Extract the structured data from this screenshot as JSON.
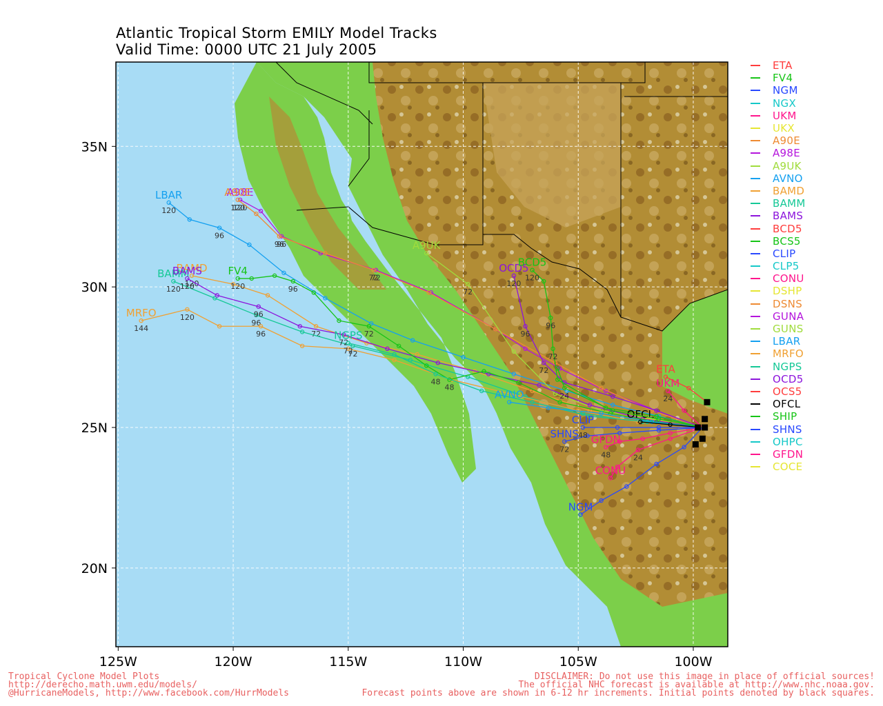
{
  "title": {
    "line1": "Atlantic Tropical Storm EMILY Model Tracks",
    "line2": "Valid Time: 0000 UTC 21 July 2005"
  },
  "axes": {
    "lon_ticks": [
      "125W",
      "120W",
      "115W",
      "110W",
      "105W",
      "100W"
    ],
    "lat_ticks": [
      "35N",
      "30N",
      "25N",
      "20N"
    ],
    "lon_range": [
      -125.1,
      -98.5
    ],
    "lat_range": [
      17.2,
      38.0
    ]
  },
  "colors": {
    "ocean": "#a8dcf5",
    "coast_green": "#7ccf4a",
    "highland": "#b08a30",
    "grid": "#ffffff"
  },
  "legend": [
    {
      "name": "ETA",
      "color": "#ff3c3c"
    },
    {
      "name": "FV4",
      "color": "#16c416"
    },
    {
      "name": "NGM",
      "color": "#2848ff"
    },
    {
      "name": "NGX",
      "color": "#14c8c8"
    },
    {
      "name": "UKM",
      "color": "#ff148c"
    },
    {
      "name": "UKX",
      "color": "#e6e632"
    },
    {
      "name": "A90E",
      "color": "#ee8a32"
    },
    {
      "name": "A98E",
      "color": "#b414dc"
    },
    {
      "name": "A9UK",
      "color": "#a0dc3c"
    },
    {
      "name": "AVNO",
      "color": "#14a0f0"
    },
    {
      "name": "BAMD",
      "color": "#f0a032"
    },
    {
      "name": "BAMM",
      "color": "#14c896"
    },
    {
      "name": "BAMS",
      "color": "#8c14dc"
    },
    {
      "name": "BCD5",
      "color": "#ff3c3c"
    },
    {
      "name": "BCS5",
      "color": "#16c416"
    },
    {
      "name": "CLIP",
      "color": "#2848ff"
    },
    {
      "name": "CLP5",
      "color": "#14c8c8"
    },
    {
      "name": "CONU",
      "color": "#ff148c"
    },
    {
      "name": "DSHP",
      "color": "#e6e632"
    },
    {
      "name": "DSNS",
      "color": "#ee8a32"
    },
    {
      "name": "GUNA",
      "color": "#b414dc"
    },
    {
      "name": "GUNS",
      "color": "#a0dc3c"
    },
    {
      "name": "LBAR",
      "color": "#14a0f0"
    },
    {
      "name": "MRFO",
      "color": "#f0a032"
    },
    {
      "name": "NGPS",
      "color": "#14c896"
    },
    {
      "name": "OCD5",
      "color": "#8c14dc"
    },
    {
      "name": "OCS5",
      "color": "#ff3c3c"
    },
    {
      "name": "OFCL",
      "color": "#000000"
    },
    {
      "name": "SHIP",
      "color": "#16c416"
    },
    {
      "name": "SHNS",
      "color": "#2848ff"
    },
    {
      "name": "OHPC",
      "color": "#14c8c8"
    },
    {
      "name": "GFDN",
      "color": "#ff148c"
    },
    {
      "name": "COCE",
      "color": "#e6e632"
    }
  ],
  "initial_position": {
    "lon": -99.6,
    "lat": 25.0
  },
  "tracks": [
    {
      "model": "LBAR",
      "color": "#14a0f0",
      "label_at": "end",
      "points": [
        [
          -99.6,
          25.0
        ],
        [
          -101.5,
          25.4
        ],
        [
          -103.5,
          25.8
        ],
        [
          -105.5,
          26.3
        ],
        [
          -107.8,
          26.9
        ],
        [
          -110.0,
          27.5
        ],
        [
          -112.2,
          28.1
        ],
        [
          -114.0,
          28.7
        ],
        [
          -116.0,
          29.6
        ],
        [
          -117.8,
          30.5
        ],
        [
          -119.3,
          31.5
        ],
        [
          -120.6,
          32.1
        ],
        [
          -121.9,
          32.4
        ],
        [
          -122.8,
          33.0
        ]
      ],
      "tau_labels": [
        {
          "i": 11,
          "t": "96"
        },
        {
          "i": 13,
          "t": "120"
        }
      ]
    },
    {
      "model": "A98E",
      "color": "#b414dc",
      "label_at": "end",
      "points": [
        [
          -99.6,
          25.0
        ],
        [
          -101.6,
          25.6
        ],
        [
          -103.8,
          26.3
        ],
        [
          -105.8,
          27.1
        ],
        [
          -107.3,
          27.8
        ],
        [
          -108.6,
          28.5
        ],
        [
          -111.4,
          29.8
        ],
        [
          -113.8,
          30.6
        ],
        [
          -116.2,
          31.2
        ],
        [
          -117.9,
          31.8
        ],
        [
          -118.8,
          32.7
        ],
        [
          -119.7,
          33.1
        ]
      ],
      "tau_labels": [
        {
          "i": 7,
          "t": "72"
        },
        {
          "i": 9,
          "t": "96"
        },
        {
          "i": 11,
          "t": "120"
        }
      ]
    },
    {
      "model": "A90E",
      "color": "#ee8a32",
      "label_at": "end",
      "points": [
        [
          -99.6,
          25.0
        ],
        [
          -101.8,
          25.6
        ],
        [
          -104.0,
          26.4
        ],
        [
          -106.0,
          27.3
        ],
        [
          -108.6,
          28.5
        ],
        [
          -111.5,
          29.8
        ],
        [
          -113.9,
          30.6
        ],
        [
          -116.0,
          31.2
        ],
        [
          -118.0,
          31.8
        ],
        [
          -119.0,
          32.6
        ],
        [
          -119.8,
          33.1
        ]
      ],
      "tau_labels": [
        {
          "i": 6,
          "t": "72"
        },
        {
          "i": 8,
          "t": "96"
        },
        {
          "i": 10,
          "t": "120"
        }
      ]
    },
    {
      "model": "A9UK",
      "color": "#a0dc3c",
      "label_at": "end",
      "points": [
        [
          -99.6,
          25.0
        ],
        [
          -101.8,
          25.3
        ],
        [
          -104.0,
          25.6
        ],
        [
          -106.0,
          26.2
        ],
        [
          -107.8,
          27.7
        ],
        [
          -109.8,
          30.1
        ],
        [
          -111.6,
          31.2
        ]
      ],
      "tau_labels": [
        {
          "i": 5,
          "t": "72"
        }
      ]
    },
    {
      "model": "BAMD",
      "color": "#f0a032",
      "label_at": "end",
      "points": [
        [
          -99.6,
          25.0
        ],
        [
          -102.0,
          25.3
        ],
        [
          -104.5,
          25.6
        ],
        [
          -107.0,
          26.3
        ],
        [
          -109.5,
          27.0
        ],
        [
          -112.0,
          27.6
        ],
        [
          -114.2,
          28.0
        ],
        [
          -116.4,
          28.6
        ],
        [
          -118.5,
          29.7
        ],
        [
          -120.0,
          30.1
        ],
        [
          -121.8,
          30.4
        ]
      ],
      "tau_labels": [
        {
          "i": 7,
          "t": "72"
        },
        {
          "i": 10,
          "t": "120"
        }
      ]
    },
    {
      "model": "BAMM",
      "color": "#14c896",
      "label_at": "end",
      "points": [
        [
          -99.6,
          25.0
        ],
        [
          -102.2,
          25.2
        ],
        [
          -104.8,
          25.5
        ],
        [
          -107.3,
          26.1
        ],
        [
          -109.8,
          26.8
        ],
        [
          -112.3,
          27.4
        ],
        [
          -114.8,
          27.9
        ],
        [
          -117.0,
          28.4
        ],
        [
          -119.0,
          29.0
        ],
        [
          -120.8,
          29.6
        ],
        [
          -122.6,
          30.2
        ]
      ],
      "tau_labels": [
        {
          "i": 6,
          "t": "72"
        },
        {
          "i": 8,
          "t": "96"
        },
        {
          "i": 10,
          "t": "120"
        }
      ]
    },
    {
      "model": "BAMS",
      "color": "#8c14dc",
      "label_at": "end",
      "points": [
        [
          -99.6,
          25.0
        ],
        [
          -102.2,
          25.3
        ],
        [
          -104.5,
          25.8
        ],
        [
          -106.7,
          26.5
        ],
        [
          -108.9,
          26.9
        ],
        [
          -111.1,
          27.3
        ],
        [
          -113.3,
          27.8
        ],
        [
          -115.2,
          28.3
        ],
        [
          -117.1,
          28.6
        ],
        [
          -118.9,
          29.3
        ],
        [
          -120.7,
          29.7
        ],
        [
          -122.0,
          30.3
        ]
      ],
      "tau_labels": [
        {
          "i": 7,
          "t": "72"
        },
        {
          "i": 9,
          "t": "96"
        },
        {
          "i": 11,
          "t": "120"
        }
      ]
    },
    {
      "model": "MRFO",
      "color": "#f0a032",
      "label_at": "end",
      "points": [
        [
          -99.6,
          25.0
        ],
        [
          -102.4,
          25.2
        ],
        [
          -105.0,
          25.6
        ],
        [
          -107.5,
          26.1
        ],
        [
          -110.5,
          26.7
        ],
        [
          -113.0,
          27.4
        ],
        [
          -115.0,
          27.8
        ],
        [
          -117.0,
          27.9
        ],
        [
          -118.8,
          28.6
        ],
        [
          -120.6,
          28.6
        ],
        [
          -122.0,
          29.2
        ],
        [
          -124.0,
          28.8
        ]
      ],
      "tau_labels": [
        {
          "i": 8,
          "t": "96"
        },
        {
          "i": 10,
          "t": "120"
        },
        {
          "i": 11,
          "t": "144"
        }
      ]
    },
    {
      "model": "FV4",
      "color": "#16c416",
      "label_at": "end",
      "points": [
        [
          -99.6,
          25.0
        ],
        [
          -101.6,
          25.2
        ],
        [
          -103.6,
          25.5
        ],
        [
          -105.8,
          25.9
        ],
        [
          -107.6,
          26.6
        ],
        [
          -109.1,
          27.0
        ],
        [
          -110.6,
          26.7
        ],
        [
          -111.6,
          27.2
        ],
        [
          -112.8,
          27.9
        ],
        [
          -114.1,
          28.6
        ],
        [
          -115.4,
          28.8
        ],
        [
          -116.5,
          29.8
        ],
        [
          -117.4,
          30.2
        ],
        [
          -118.2,
          30.4
        ],
        [
          -119.2,
          30.3
        ],
        [
          -119.8,
          30.3
        ]
      ],
      "tau_labels": [
        {
          "i": 6,
          "t": "48"
        },
        {
          "i": 9,
          "t": "72"
        },
        {
          "i": 12,
          "t": "96"
        },
        {
          "i": 15,
          "t": "120"
        }
      ]
    },
    {
      "model": "NGPS",
      "color": "#14c896",
      "label_at": "end",
      "points": [
        [
          -99.6,
          25.0
        ],
        [
          -102.0,
          25.2
        ],
        [
          -104.5,
          25.4
        ],
        [
          -107.0,
          25.9
        ],
        [
          -109.2,
          26.3
        ],
        [
          -111.2,
          26.9
        ],
        [
          -113.0,
          27.6
        ],
        [
          -115.0,
          28.0
        ]
      ],
      "tau_labels": [
        {
          "i": 5,
          "t": "48"
        },
        {
          "i": 7,
          "t": "72"
        }
      ]
    },
    {
      "model": "OCD5",
      "color": "#8c14dc",
      "label_at": "end",
      "points": [
        [
          -99.6,
          25.0
        ],
        [
          -101.6,
          25.6
        ],
        [
          -103.5,
          26.1
        ],
        [
          -105.6,
          26.6
        ],
        [
          -106.5,
          27.3
        ],
        [
          -107.3,
          28.6
        ],
        [
          -107.8,
          30.4
        ]
      ],
      "tau_labels": [
        {
          "i": 4,
          "t": "72"
        },
        {
          "i": 5,
          "t": "96"
        },
        {
          "i": 6,
          "t": "120"
        }
      ]
    },
    {
      "model": "BCD5",
      "color": "#16c416",
      "label_at": "end",
      "points": [
        [
          -99.6,
          25.0
        ],
        [
          -101.6,
          25.4
        ],
        [
          -103.8,
          25.7
        ],
        [
          -105.9,
          26.7
        ],
        [
          -106.1,
          27.8
        ],
        [
          -106.2,
          28.9
        ],
        [
          -106.5,
          30.2
        ],
        [
          -107.0,
          30.6
        ]
      ],
      "tau_labels": [
        {
          "i": 4,
          "t": "72"
        },
        {
          "i": 5,
          "t": "96"
        },
        {
          "i": 7,
          "t": "120"
        }
      ]
    },
    {
      "model": "UKM",
      "color": "#ff148c",
      "label_at": "end",
      "points": [
        [
          -99.6,
          25.0
        ],
        [
          -100.4,
          25.6
        ],
        [
          -101.1,
          26.3
        ]
      ],
      "tau_labels": [
        {
          "i": 2,
          "t": "24"
        }
      ]
    },
    {
      "model": "ETA",
      "color": "#ff3c3c",
      "label_at": "end",
      "points": [
        [
          -99.4,
          25.9
        ],
        [
          -100.2,
          26.4
        ],
        [
          -101.2,
          26.8
        ]
      ],
      "tau_labels": []
    },
    {
      "model": "NGM",
      "color": "#2848ff",
      "label_at": "end",
      "points": [
        [
          -99.6,
          25.0
        ],
        [
          -100.4,
          24.3
        ],
        [
          -101.6,
          23.7
        ],
        [
          -102.9,
          22.9
        ],
        [
          -104.0,
          22.4
        ],
        [
          -104.9,
          21.9
        ]
      ],
      "tau_labels": []
    },
    {
      "model": "CONU",
      "color": "#ff148c",
      "label_at": "end",
      "points": [
        [
          -99.6,
          25.0
        ],
        [
          -101.0,
          24.6
        ],
        [
          -102.4,
          24.2
        ],
        [
          -103.3,
          23.6
        ],
        [
          -103.6,
          23.2
        ]
      ],
      "tau_labels": [
        {
          "i": 2,
          "t": "24"
        }
      ]
    },
    {
      "model": "SHNS",
      "color": "#2848ff",
      "label_at": "end",
      "points": [
        [
          -99.6,
          25.0
        ],
        [
          -101.5,
          24.9
        ],
        [
          -103.2,
          24.8
        ],
        [
          -104.6,
          24.7
        ],
        [
          -105.6,
          24.5
        ]
      ],
      "tau_labels": [
        {
          "i": 4,
          "t": "72"
        }
      ]
    },
    {
      "model": "AVNO",
      "color": "#14a0f0",
      "label_at": "end",
      "points": [
        [
          -99.6,
          25.0
        ],
        [
          -101.8,
          25.2
        ],
        [
          -104.0,
          25.5
        ],
        [
          -106.3,
          25.7
        ],
        [
          -108.0,
          25.9
        ]
      ],
      "tau_labels": []
    },
    {
      "model": "GFDN",
      "color": "#ff148c",
      "label_at": "end",
      "points": [
        [
          -99.6,
          25.0
        ],
        [
          -101.0,
          24.8
        ],
        [
          -102.2,
          24.6
        ],
        [
          -103.2,
          24.5
        ],
        [
          -103.8,
          24.3
        ]
      ],
      "tau_labels": [
        {
          "i": 4,
          "t": "48"
        }
      ]
    },
    {
      "model": "OFCL",
      "color": "#000000",
      "label_at": "end",
      "points": [
        [
          -99.6,
          25.0
        ],
        [
          -101.0,
          25.1
        ],
        [
          -102.3,
          25.2
        ]
      ],
      "tau_labels": []
    },
    {
      "model": "CLIP",
      "color": "#2848ff",
      "label_at": "end",
      "points": [
        [
          -99.6,
          25.0
        ],
        [
          -101.5,
          25.0
        ],
        [
          -103.3,
          25.0
        ],
        [
          -104.8,
          25.0
        ]
      ],
      "tau_labels": [
        {
          "i": 3,
          "t": "48"
        }
      ]
    },
    {
      "model": "SHIP",
      "color": "#16c416",
      "label_at": "none",
      "points": [
        [
          -99.6,
          25.0
        ],
        [
          -101.5,
          25.3
        ],
        [
          -103.5,
          25.6
        ],
        [
          -105.6,
          26.4
        ],
        [
          -105.9,
          27.1
        ]
      ],
      "tau_labels": [
        {
          "i": 3,
          "t": "24"
        }
      ]
    }
  ],
  "initial_squares": [
    [
      -99.4,
      25.9
    ],
    [
      -99.5,
      25.3
    ],
    [
      -99.8,
      25.0
    ],
    [
      -99.5,
      25.0
    ],
    [
      -99.6,
      24.6
    ],
    [
      -99.9,
      24.4
    ]
  ],
  "footer": {
    "left": [
      "Tropical Cyclone Model Plots",
      "http://derecho.math.uwm.edu/models/",
      "@HurricaneModels, http://www.facebook.com/HurrModels"
    ],
    "right": [
      "DISCLAIMER: Do not use this image in place of official sources!",
      "The official NHC forecast is available at http://www.nhc.noaa.gov.",
      "Forecast points above are shown in 6-12 hr increments. Initial points denoted by black squares."
    ]
  }
}
